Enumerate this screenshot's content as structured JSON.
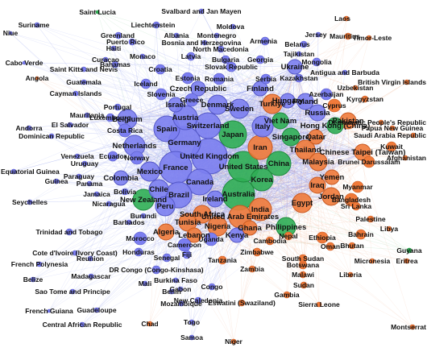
{
  "colors": {
    "blue": "#7b7ef0",
    "green": "#2fae54",
    "orange": "#f07a3a",
    "edge_blue": "#9aa3f0",
    "edge_orange": "#f0b090",
    "edge_green": "#7cc890"
  },
  "nodes": [
    {
      "label": "Saint Lucia",
      "c": "green"
    },
    {
      "label": "Svalbard and Jan Mayen",
      "c": "blue"
    },
    {
      "label": "Laos",
      "c": "orange"
    },
    {
      "label": "Suriname",
      "c": "blue"
    },
    {
      "label": "Liechtenstein",
      "c": "blue"
    },
    {
      "label": "Moldova",
      "c": "blue"
    },
    {
      "label": "Niue",
      "c": "blue"
    },
    {
      "label": "Greenland",
      "c": "blue"
    },
    {
      "label": "Albania",
      "c": "blue"
    },
    {
      "label": "Montenegro",
      "c": "blue"
    },
    {
      "label": "Jersey",
      "c": "blue"
    },
    {
      "label": "Mauritius",
      "c": "orange"
    },
    {
      "label": "Timor-Leste",
      "c": "orange"
    },
    {
      "label": "Puerto Rico",
      "c": "blue"
    },
    {
      "label": "Bosnia and Herzegovina",
      "c": "blue"
    },
    {
      "label": "Armenia",
      "c": "blue"
    },
    {
      "label": "Belarus",
      "c": "blue"
    },
    {
      "label": "Haiti",
      "c": "blue"
    },
    {
      "label": "North Macedonia",
      "c": "blue"
    },
    {
      "label": "Tajikistan",
      "c": "blue"
    },
    {
      "label": "Cabo Verde",
      "c": "blue"
    },
    {
      "label": "Curacao",
      "c": "blue"
    },
    {
      "label": "Monaco",
      "c": "blue"
    },
    {
      "label": "Latvia",
      "c": "blue"
    },
    {
      "label": "Bulgaria",
      "c": "blue"
    },
    {
      "label": "Georgia",
      "c": "blue"
    },
    {
      "label": "Mongolia",
      "c": "blue"
    },
    {
      "label": "Bahamas",
      "c": "blue"
    },
    {
      "label": "Croatia",
      "c": "blue"
    },
    {
      "label": "Slovak Republic",
      "c": "blue"
    },
    {
      "label": "Ukraine",
      "c": "blue"
    },
    {
      "label": "Angola",
      "c": "orange"
    },
    {
      "label": "Saint Kitts and Nevis",
      "c": "blue"
    },
    {
      "label": "Estonia",
      "c": "blue"
    },
    {
      "label": "Romania",
      "c": "blue"
    },
    {
      "label": "Serbia",
      "c": "blue"
    },
    {
      "label": "Kazakhstan",
      "c": "blue"
    },
    {
      "label": "Antigua and Barbuda",
      "c": "blue"
    },
    {
      "label": "Guatemala",
      "c": "blue"
    },
    {
      "label": "Iceland",
      "c": "blue"
    },
    {
      "label": "Czech Republic",
      "c": "blue"
    },
    {
      "label": "Finland",
      "c": "blue"
    },
    {
      "label": "Uzbekistan",
      "c": "orange"
    },
    {
      "label": "British Virgin Islands",
      "c": "orange"
    },
    {
      "label": "Cayman Islands",
      "c": "blue"
    },
    {
      "label": "Slovenia",
      "c": "blue"
    },
    {
      "label": "Greece",
      "c": "blue"
    },
    {
      "label": "Hungary",
      "c": "blue"
    },
    {
      "label": "Azerbaijan",
      "c": "blue"
    },
    {
      "label": "Kyrgyzstan",
      "c": "orange"
    },
    {
      "label": "Portugal",
      "c": "blue"
    },
    {
      "label": "Israel",
      "c": "blue"
    },
    {
      "label": "Denmark",
      "c": "blue"
    },
    {
      "label": "Turkiye",
      "c": "orange"
    },
    {
      "label": "Poland",
      "c": "blue"
    },
    {
      "label": "Russia",
      "c": "blue"
    },
    {
      "label": "Cyprus",
      "c": "orange"
    },
    {
      "label": "Mauritania",
      "c": "blue"
    },
    {
      "label": "Luxembourg",
      "c": "blue"
    },
    {
      "label": "Sweden",
      "c": "blue"
    },
    {
      "label": "Viet Nam",
      "c": "green"
    },
    {
      "label": "Pakistan",
      "c": "orange"
    },
    {
      "label": "Democratic People's Republic",
      "c": "orange"
    },
    {
      "label": "Andorra",
      "c": "blue"
    },
    {
      "label": "El Salvador",
      "c": "blue"
    },
    {
      "label": "Belgium",
      "c": "blue"
    },
    {
      "label": "Austria",
      "c": "blue"
    },
    {
      "label": "Switzerland",
      "c": "blue"
    },
    {
      "label": "Italy",
      "c": "blue"
    },
    {
      "label": "Hong Kong (China)",
      "c": "green"
    },
    {
      "label": "Papua New Guinea",
      "c": "orange"
    },
    {
      "label": "Dominican Republic",
      "c": "blue"
    },
    {
      "label": "Costa Rica",
      "c": "blue"
    },
    {
      "label": "Spain",
      "c": "blue"
    },
    {
      "label": "Netherlands",
      "c": "blue"
    },
    {
      "label": "Singapore",
      "c": "green"
    },
    {
      "label": "Qatar",
      "c": "orange"
    },
    {
      "label": "Saudi Arabia Republic",
      "c": "orange"
    },
    {
      "label": "Germany",
      "c": "blue"
    },
    {
      "label": "Japan",
      "c": "green"
    },
    {
      "label": "Iran",
      "c": "orange"
    },
    {
      "label": "Thailand",
      "c": "orange"
    },
    {
      "label": "Chinese Taipei (Taiwan)",
      "c": "orange"
    },
    {
      "label": "Kuwait",
      "c": "orange"
    },
    {
      "label": "Venezuela",
      "c": "blue"
    },
    {
      "label": "Ecuador",
      "c": "blue"
    },
    {
      "label": "Norway",
      "c": "blue"
    },
    {
      "label": "France",
      "c": "blue"
    },
    {
      "label": "United Kingdom",
      "c": "blue"
    },
    {
      "label": "Canada",
      "c": "blue"
    },
    {
      "label": "China",
      "c": "green"
    },
    {
      "label": "Malaysia",
      "c": "orange"
    },
    {
      "label": "Brunei Darussalam",
      "c": "orange"
    },
    {
      "label": "Afghanistan",
      "c": "orange"
    },
    {
      "label": "Uruguay",
      "c": "blue"
    },
    {
      "label": "Colombia",
      "c": "blue"
    },
    {
      "label": "United States",
      "c": "green"
    },
    {
      "label": "Yemen",
      "c": "orange"
    },
    {
      "label": "Equatorial Guinea",
      "c": "blue"
    },
    {
      "label": "Paraguay",
      "c": "blue"
    },
    {
      "label": "Guinea",
      "c": "blue"
    },
    {
      "label": "Mexico",
      "c": "blue"
    },
    {
      "label": "Korea",
      "c": "green"
    },
    {
      "label": "Iraq",
      "c": "orange"
    },
    {
      "label": "Jordan",
      "c": "orange"
    },
    {
      "label": "Myanmar",
      "c": "orange"
    },
    {
      "label": "Panama",
      "c": "blue"
    },
    {
      "label": "Chile",
      "c": "blue"
    },
    {
      "label": "Brazil",
      "c": "blue"
    },
    {
      "label": "Australia",
      "c": "green"
    },
    {
      "label": "Egypt",
      "c": "orange"
    },
    {
      "label": "Bangladesh",
      "c": "orange"
    },
    {
      "label": "Nepal",
      "c": "orange"
    },
    {
      "label": "Jamaica",
      "c": "blue"
    },
    {
      "label": "Bolivia",
      "c": "blue"
    },
    {
      "label": "Ireland",
      "c": "blue"
    },
    {
      "label": "India",
      "c": "orange"
    },
    {
      "label": "Sri Lanka",
      "c": "orange"
    },
    {
      "label": "Seychelles",
      "c": "blue"
    },
    {
      "label": "Nicaragua",
      "c": "blue"
    },
    {
      "label": "New Zealand",
      "c": "green"
    },
    {
      "label": "Peru",
      "c": "blue"
    },
    {
      "label": "South Africa",
      "c": "orange"
    },
    {
      "label": "United Arab Emirates",
      "c": "orange"
    },
    {
      "label": "Burundi",
      "c": "blue"
    },
    {
      "label": "Tunisia",
      "c": "orange"
    },
    {
      "label": "Nigeria",
      "c": "orange"
    },
    {
      "label": "Palestine",
      "c": "orange"
    },
    {
      "label": "Barbados",
      "c": "blue"
    },
    {
      "label": "Algeria",
      "c": "orange"
    },
    {
      "label": "Lebanon",
      "c": "orange"
    },
    {
      "label": "Kenya",
      "c": "blue"
    },
    {
      "label": "Ghana",
      "c": "orange"
    },
    {
      "label": "Philippines",
      "c": "green"
    },
    {
      "label": "Libya",
      "c": "orange"
    },
    {
      "label": "Trinidad and Tobago",
      "c": "blue"
    },
    {
      "label": "Morocco",
      "c": "blue"
    },
    {
      "label": "Cameroon",
      "c": "blue"
    },
    {
      "label": "Uganda",
      "c": "blue"
    },
    {
      "label": "Cambodia",
      "c": "orange"
    },
    {
      "label": "Ethiopia",
      "c": "orange"
    },
    {
      "label": "Bahrain",
      "c": "orange"
    },
    {
      "label": "Zimbabwe",
      "c": "orange"
    },
    {
      "label": "Oman",
      "c": "orange"
    },
    {
      "label": "Bhutan",
      "c": "orange"
    },
    {
      "label": "Guyana",
      "c": "green"
    },
    {
      "label": "Cote d'Ivoire (Ivory Coast)",
      "c": "blue"
    },
    {
      "label": "Reunion",
      "c": "blue"
    },
    {
      "label": "Honduras",
      "c": "blue"
    },
    {
      "label": "Senegal",
      "c": "blue"
    },
    {
      "label": "Fiji",
      "c": "blue"
    },
    {
      "label": "Tanzania",
      "c": "orange"
    },
    {
      "label": "Botswana",
      "c": "orange"
    },
    {
      "label": "Malawi",
      "c": "orange"
    },
    {
      "label": "Micronesia",
      "c": "orange"
    },
    {
      "label": "South Sudan",
      "c": "orange"
    },
    {
      "label": "Eritrea",
      "c": "orange"
    },
    {
      "label": "French Polynesia",
      "c": "blue"
    },
    {
      "label": "DR Congo (Congo-Kinshasa)",
      "c": "blue"
    },
    {
      "label": "Zambia",
      "c": "orange"
    },
    {
      "label": "Madagascar",
      "c": "blue"
    },
    {
      "label": "Sudan",
      "c": "orange"
    },
    {
      "label": "Liberia",
      "c": "orange"
    },
    {
      "label": "Belize",
      "c": "blue"
    },
    {
      "label": "Burkina Faso",
      "c": "blue"
    },
    {
      "label": "Mali",
      "c": "blue"
    },
    {
      "label": "Congo",
      "c": "blue"
    },
    {
      "label": "Sao Tome and Principe",
      "c": "blue"
    },
    {
      "label": "Gabon",
      "c": "blue"
    },
    {
      "label": "Benin",
      "c": "blue"
    },
    {
      "label": "New Caledonia",
      "c": "blue"
    },
    {
      "label": "Gambia",
      "c": "orange"
    },
    {
      "label": "Mozambique",
      "c": "blue"
    },
    {
      "label": "Eswatini (Swaziland)",
      "c": "orange"
    },
    {
      "label": "Sierra Leone",
      "c": "orange"
    },
    {
      "label": "French Guiana",
      "c": "blue"
    },
    {
      "label": "Guadeloupe",
      "c": "blue"
    },
    {
      "label": "Central African Republic",
      "c": "blue"
    },
    {
      "label": "Montserrat",
      "c": "orange"
    },
    {
      "label": "Chad",
      "c": "orange"
    },
    {
      "label": "Togo",
      "c": "blue"
    },
    {
      "label": "Samoa",
      "c": "blue"
    },
    {
      "label": "Niger",
      "c": "orange"
    }
  ]
}
